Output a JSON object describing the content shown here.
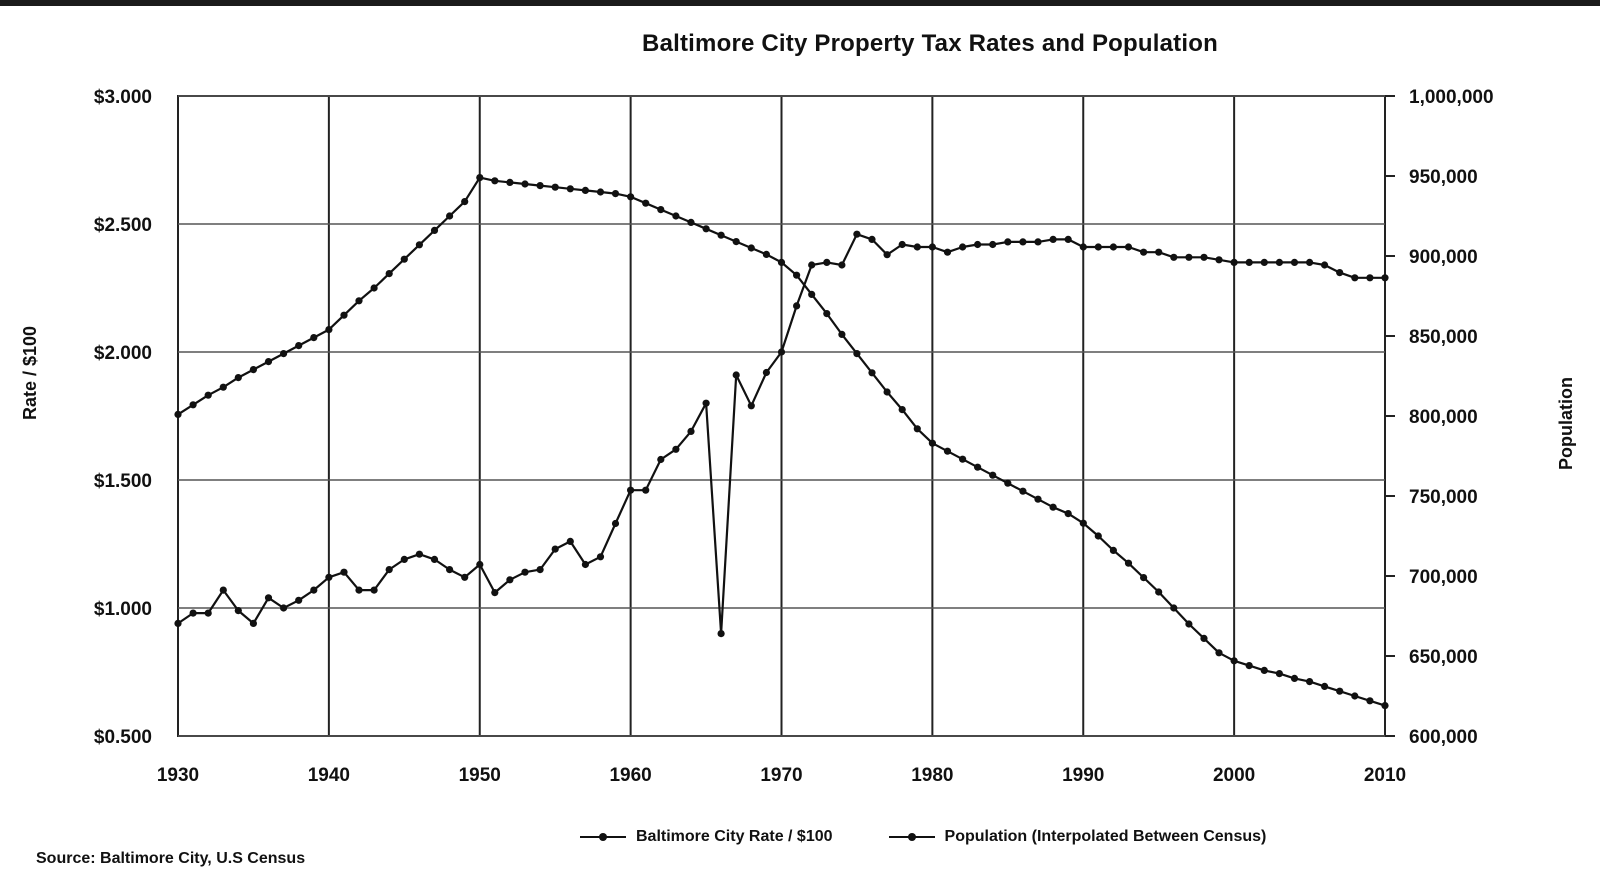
{
  "title": "Baltimore City Property Tax Rates and Population",
  "left_axis_label": "Rate / $100",
  "right_axis_label": "Population",
  "source": "Source: Baltimore City, U.S Census",
  "chart_data": {
    "type": "line",
    "title": "Baltimore City Property Tax Rates and Population",
    "xlabel": "",
    "ylabel_left": "Rate / $100",
    "ylabel_right": "Population",
    "x_ticks": [
      "1930",
      "1940",
      "1950",
      "1960",
      "1970",
      "1980",
      "1990",
      "2000",
      "2010"
    ],
    "xlim": [
      1930,
      2010
    ],
    "y_left_ticks": [
      "$0.500",
      "$1.000",
      "$1.500",
      "$2.000",
      "$2.500",
      "$3.000"
    ],
    "ylim_left": [
      0.5,
      3.0
    ],
    "y_right_ticks": [
      "600,000",
      "650,000",
      "700,000",
      "750,000",
      "800,000",
      "850,000",
      "900,000",
      "950,000",
      "1,000,000"
    ],
    "ylim_right": [
      600000,
      1000000
    ],
    "grid": true,
    "legend_position": "bottom",
    "x": [
      1930,
      1931,
      1932,
      1933,
      1934,
      1935,
      1936,
      1937,
      1938,
      1939,
      1940,
      1941,
      1942,
      1943,
      1944,
      1945,
      1946,
      1947,
      1948,
      1949,
      1950,
      1951,
      1952,
      1953,
      1954,
      1955,
      1956,
      1957,
      1958,
      1959,
      1960,
      1961,
      1962,
      1963,
      1964,
      1965,
      1966,
      1967,
      1968,
      1969,
      1970,
      1971,
      1972,
      1973,
      1974,
      1975,
      1976,
      1977,
      1978,
      1979,
      1980,
      1981,
      1982,
      1983,
      1984,
      1985,
      1986,
      1987,
      1988,
      1989,
      1990,
      1991,
      1992,
      1993,
      1994,
      1995,
      1996,
      1997,
      1998,
      1999,
      2000,
      2001,
      2002,
      2003,
      2004,
      2005,
      2006,
      2007,
      2008,
      2009,
      2010
    ],
    "series": [
      {
        "name": "Baltimore City Rate / $100",
        "axis": "left",
        "values": [
          0.94,
          0.98,
          0.98,
          1.07,
          0.99,
          0.94,
          1.04,
          1.0,
          1.03,
          1.07,
          1.12,
          1.14,
          1.07,
          1.07,
          1.15,
          1.19,
          1.21,
          1.19,
          1.15,
          1.12,
          1.17,
          1.06,
          1.11,
          1.14,
          1.15,
          1.23,
          1.26,
          1.17,
          1.2,
          1.33,
          1.46,
          1.46,
          1.58,
          1.62,
          1.69,
          1.8,
          0.9,
          1.91,
          1.79,
          1.92,
          2.0,
          2.18,
          2.34,
          2.35,
          2.34,
          2.46,
          2.44,
          2.38,
          2.42,
          2.41,
          2.41,
          2.39,
          2.41,
          2.42,
          2.42,
          2.43,
          2.43,
          2.43,
          2.44,
          2.44,
          2.41,
          2.41,
          2.41,
          2.41,
          2.39,
          2.39,
          2.37,
          2.37,
          2.37,
          2.36,
          2.35,
          2.35,
          2.35,
          2.35,
          2.35,
          2.35,
          2.34,
          2.31,
          2.29,
          2.29,
          2.29
        ]
      },
      {
        "name": "Population (Interpolated Between Census)",
        "axis": "right",
        "values": [
          801000,
          807000,
          813000,
          818000,
          824000,
          829000,
          834000,
          839000,
          844000,
          849000,
          854000,
          863000,
          872000,
          880000,
          889000,
          898000,
          907000,
          916000,
          925000,
          934000,
          949000,
          947000,
          946000,
          945000,
          944000,
          943000,
          942000,
          941000,
          940000,
          939000,
          937000,
          933000,
          929000,
          925000,
          921000,
          917000,
          913000,
          909000,
          905000,
          901000,
          896000,
          888000,
          876000,
          864000,
          851000,
          839000,
          827000,
          815000,
          804000,
          792000,
          783000,
          778000,
          773000,
          768000,
          763000,
          758000,
          753000,
          748000,
          743000,
          739000,
          733000,
          725000,
          716000,
          708000,
          699000,
          690000,
          680000,
          670000,
          661000,
          652000,
          647000,
          644000,
          641000,
          639000,
          636000,
          634000,
          631000,
          628000,
          625000,
          622000,
          619000
        ]
      }
    ]
  }
}
